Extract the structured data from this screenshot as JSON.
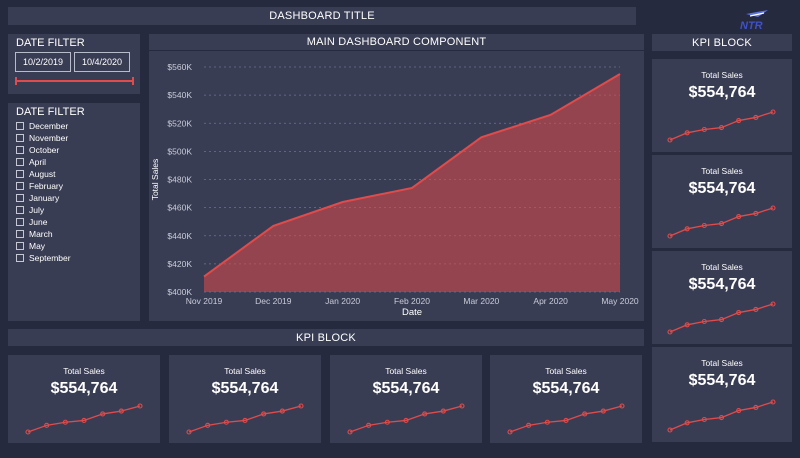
{
  "header": {
    "title": "DASHBOARD TITLE",
    "logo_text": "NTR",
    "logo_icon": "airplane-logo"
  },
  "date_filter": {
    "title": "DATE FILTER",
    "start": "10/2/2019",
    "end": "10/4/2020",
    "accent": "#e04b4b"
  },
  "month_filter": {
    "title": "DATE FILTER",
    "months": [
      "December",
      "November",
      "October",
      "April",
      "August",
      "February",
      "January",
      "July",
      "June",
      "March",
      "May",
      "September"
    ]
  },
  "main": {
    "title": "MAIN DASHBOARD COMPONENT"
  },
  "kpi_side": {
    "title": "KPI BLOCK"
  },
  "kpi_bottom": {
    "title": "KPI BLOCK"
  },
  "kpi_card": {
    "label": "Total Sales",
    "value": "$554,764",
    "sparkline": [
      410,
      447,
      464,
      474,
      510,
      526,
      554
    ],
    "color": "#e04b4b"
  },
  "colors": {
    "background": "#262a3f",
    "panel": "#393d54",
    "series": "#e04b4b"
  },
  "chart_data": {
    "type": "area",
    "x": [
      "Nov 2019",
      "Dec 2019",
      "Jan 2020",
      "Feb 2020",
      "Mar 2020",
      "Apr 2020",
      "May 2020"
    ],
    "series": [
      {
        "values": [
          411000,
          447000,
          464000,
          474000,
          510000,
          526000,
          555000
        ]
      }
    ],
    "xlabel": "Date",
    "ylabel": "Total Sales",
    "ylim": [
      400000,
      560000
    ],
    "yticks": [
      "$400K",
      "$420K",
      "$440K",
      "$460K",
      "$480K",
      "$500K",
      "$520K",
      "$540K",
      "$560K"
    ],
    "ytick_values": [
      400000,
      420000,
      440000,
      460000,
      480000,
      500000,
      520000,
      540000,
      560000
    ],
    "grid": true,
    "legend": "none"
  }
}
